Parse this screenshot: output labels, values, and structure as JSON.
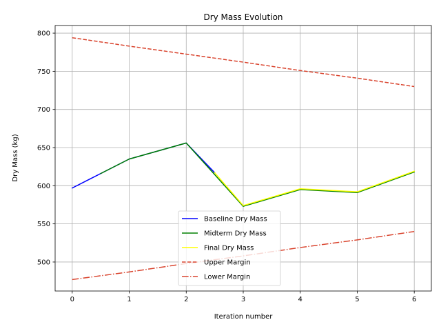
{
  "chart_data": {
    "type": "line",
    "title": "Dry Mass Evolution",
    "xlabel": "Iteration number",
    "ylabel": "Dry Mass (kg)",
    "xlim": [
      -0.3,
      6.3
    ],
    "ylim": [
      462,
      810
    ],
    "xticks": [
      0,
      1,
      2,
      3,
      4,
      5,
      6
    ],
    "yticks": [
      500,
      550,
      600,
      650,
      700,
      750,
      800
    ],
    "grid": true,
    "legend_position": "lower center",
    "series": [
      {
        "name": "Baseline Dry Mass",
        "color": "#0000ff",
        "style": "solid",
        "x": [
          0,
          1,
          2,
          2.5
        ],
        "y": [
          597,
          635,
          656,
          617
        ]
      },
      {
        "name": "Midterm Dry Mass",
        "color": "#008000",
        "style": "solid",
        "x": [
          0.5,
          1,
          2,
          3,
          4,
          5,
          6
        ],
        "y": [
          616,
          635,
          656,
          573,
          595,
          591,
          618
        ]
      },
      {
        "name": "Final Dry Mass",
        "color": "#ffff00",
        "style": "solid",
        "x": [
          2.5,
          3,
          4,
          5,
          6
        ],
        "y": [
          617,
          574,
          596,
          592,
          619
        ]
      },
      {
        "name": "Upper Margin",
        "color": "#d9442e",
        "style": "dashed",
        "x": [
          0,
          1,
          2,
          3,
          4,
          5,
          6
        ],
        "y": [
          794,
          783,
          772.5,
          762,
          751,
          741,
          730
        ]
      },
      {
        "name": "Lower Margin",
        "color": "#d9442e",
        "style": "dashdot",
        "x": [
          0,
          1,
          2,
          3,
          4,
          5,
          6
        ],
        "y": [
          477,
          487,
          498,
          508,
          519,
          529,
          540
        ]
      }
    ]
  }
}
